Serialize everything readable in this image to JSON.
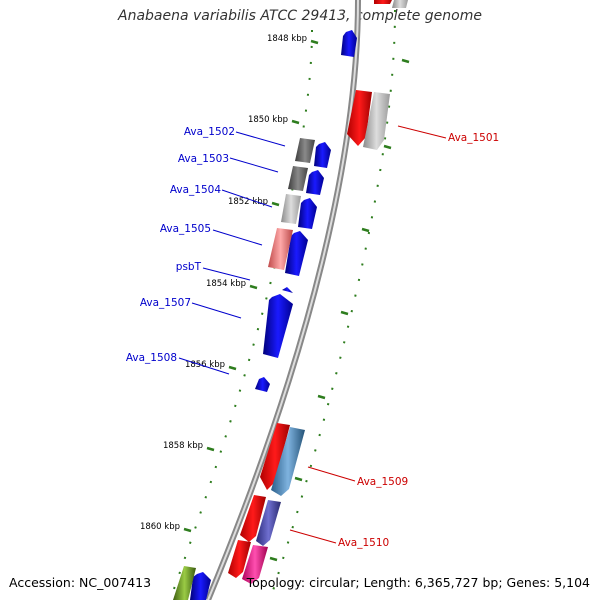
{
  "title": "Anabaena variabilis ATCC 29413, complete genome",
  "footer": {
    "accession": "Accession: NC_007413",
    "stats": "Topology: circular; Length: 6,365,727 bp; Genes: 5,104"
  },
  "colors": {
    "backbone": "#888888",
    "tick": "#2e7d1e",
    "left_label": "#0000cc",
    "right_label": "#cc0000"
  },
  "kbp_ticks": [
    "1848 kbp",
    "1850 kbp",
    "1852 kbp",
    "1854 kbp",
    "1856 kbp",
    "1858 kbp",
    "1860 kbp"
  ],
  "left_labels": [
    "Ava_1502",
    "Ava_1503",
    "Ava_1504",
    "Ava_1505",
    "psbT",
    "Ava_1507",
    "Ava_1508"
  ],
  "right_labels": [
    "Ava_1501",
    "Ava_1509",
    "Ava_1510"
  ]
}
